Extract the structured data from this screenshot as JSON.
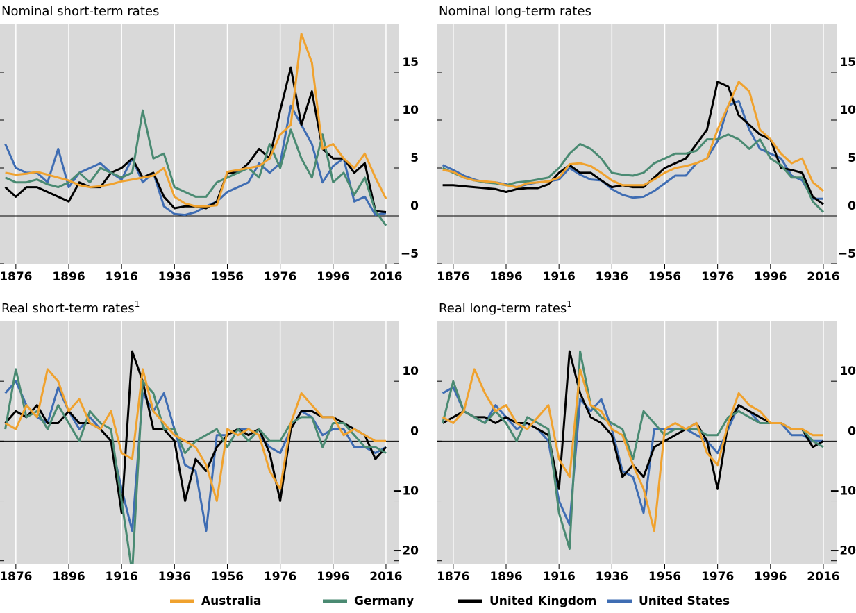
{
  "chart_data": [
    {
      "type": "line",
      "title": "Nominal short-term rates",
      "xlim": [
        1870,
        2021
      ],
      "ylim": [
        -5,
        20
      ],
      "xticks": [
        1876,
        1896,
        1916,
        1936,
        1956,
        1976,
        1996,
        2016
      ],
      "yticks": [
        {
          "value": -5,
          "label": "−5"
        },
        0,
        5,
        10,
        15
      ],
      "x": [
        1872,
        1876,
        1880,
        1884,
        1888,
        1892,
        1896,
        1900,
        1904,
        1908,
        1912,
        1916,
        1920,
        1924,
        1928,
        1932,
        1936,
        1940,
        1944,
        1948,
        1952,
        1956,
        1960,
        1964,
        1968,
        1972,
        1976,
        1980,
        1984,
        1988,
        1992,
        1996,
        2000,
        2004,
        2008,
        2012,
        2016
      ],
      "series": [
        {
          "name": "Australia",
          "color": "#f0a22e",
          "values": [
            4.5,
            4.3,
            4.4,
            4.6,
            4.3,
            4.0,
            3.7,
            3.2,
            3.0,
            3.1,
            3.3,
            3.6,
            3.8,
            4.0,
            4.2,
            5.0,
            2.0,
            1.3,
            1.0,
            1.0,
            1.1,
            4.6,
            4.8,
            5.0,
            5.2,
            6.0,
            8.5,
            9.5,
            19.0,
            16.0,
            7.0,
            7.5,
            6.0,
            5.0,
            6.5,
            4.0,
            1.8
          ]
        },
        {
          "name": "Germany",
          "color": "#4a8a72",
          "values": [
            4.0,
            3.5,
            3.5,
            3.8,
            3.3,
            3.0,
            3.5,
            4.5,
            3.5,
            5.0,
            4.5,
            4.0,
            4.5,
            11.0,
            6.0,
            6.5,
            3.0,
            2.5,
            2.0,
            2.0,
            3.5,
            4.0,
            4.5,
            5.0,
            4.0,
            7.5,
            5.0,
            9.0,
            6.0,
            4.0,
            8.5,
            3.5,
            4.5,
            2.2,
            4.0,
            0.5,
            -1.0
          ]
        },
        {
          "name": "United Kingdom",
          "color": "#000000",
          "values": [
            3.0,
            2.0,
            3.0,
            3.0,
            2.5,
            2.0,
            1.5,
            3.5,
            3.0,
            3.0,
            4.5,
            5.0,
            6.0,
            4.0,
            4.5,
            2.0,
            0.8,
            1.0,
            1.0,
            0.8,
            1.5,
            4.5,
            4.5,
            5.5,
            7.0,
            6.0,
            11.0,
            15.5,
            9.5,
            13.0,
            7.0,
            6.0,
            6.0,
            4.5,
            5.5,
            0.5,
            0.4
          ]
        },
        {
          "name": "United States",
          "color": "#3f6db3",
          "values": [
            7.5,
            5.0,
            4.5,
            4.5,
            3.5,
            7.0,
            3.0,
            4.5,
            5.0,
            5.5,
            4.5,
            3.8,
            6.0,
            3.5,
            4.5,
            1.0,
            0.2,
            0.1,
            0.4,
            1.0,
            1.5,
            2.5,
            3.0,
            3.5,
            5.5,
            4.5,
            5.5,
            11.5,
            9.5,
            7.5,
            3.5,
            5.2,
            6.0,
            1.5,
            2.0,
            0.1,
            0.3
          ]
        }
      ]
    },
    {
      "type": "line",
      "title": "Nominal long-term rates",
      "xlim": [
        1870,
        2021
      ],
      "ylim": [
        -5,
        20
      ],
      "xticks": [
        1876,
        1896,
        1916,
        1936,
        1956,
        1976,
        1996,
        2016
      ],
      "yticks": [
        {
          "value": -5,
          "label": "−5"
        },
        0,
        5,
        10,
        15
      ],
      "x": [
        1872,
        1876,
        1880,
        1884,
        1888,
        1892,
        1896,
        1900,
        1904,
        1908,
        1912,
        1916,
        1920,
        1924,
        1928,
        1932,
        1936,
        1940,
        1944,
        1948,
        1952,
        1956,
        1960,
        1964,
        1968,
        1972,
        1976,
        1980,
        1984,
        1988,
        1992,
        1996,
        2000,
        2004,
        2008,
        2012,
        2016
      ],
      "series": [
        {
          "name": "Australia",
          "color": "#f0a22e",
          "values": [
            4.8,
            4.6,
            4.0,
            3.7,
            3.6,
            3.5,
            3.2,
            3.0,
            3.4,
            3.5,
            3.6,
            4.0,
            5.4,
            5.5,
            5.2,
            4.5,
            3.7,
            3.2,
            3.2,
            3.2,
            3.8,
            4.5,
            5.0,
            5.2,
            5.5,
            6.0,
            9.0,
            11.5,
            14.0,
            13.0,
            9.0,
            8.0,
            6.5,
            5.5,
            6.0,
            3.5,
            2.6
          ]
        },
        {
          "name": "Germany",
          "color": "#4a8a72",
          "values": [
            5.0,
            4.5,
            4.0,
            3.7,
            3.5,
            3.4,
            3.2,
            3.5,
            3.6,
            3.8,
            4.0,
            5.0,
            6.5,
            7.5,
            7.0,
            6.0,
            4.5,
            4.3,
            4.2,
            4.5,
            5.5,
            6.0,
            6.5,
            6.5,
            6.8,
            8.0,
            8.0,
            8.5,
            8.0,
            7.0,
            8.0,
            6.0,
            5.3,
            4.0,
            4.0,
            1.5,
            0.4
          ]
        },
        {
          "name": "United Kingdom",
          "color": "#000000",
          "values": [
            3.2,
            3.2,
            3.1,
            3.0,
            2.9,
            2.8,
            2.5,
            2.8,
            2.9,
            2.9,
            3.3,
            4.5,
            5.3,
            4.5,
            4.5,
            3.7,
            3.0,
            3.2,
            3.0,
            3.0,
            4.0,
            5.0,
            5.5,
            6.0,
            7.5,
            9.0,
            14.0,
            13.5,
            10.5,
            9.5,
            8.5,
            8.0,
            5.0,
            4.8,
            4.5,
            2.0,
            1.2
          ]
        },
        {
          "name": "United States",
          "color": "#3f6db3",
          "values": [
            5.3,
            4.8,
            4.2,
            3.8,
            3.5,
            3.5,
            3.3,
            3.0,
            3.3,
            3.5,
            3.6,
            3.8,
            5.0,
            4.3,
            3.8,
            3.7,
            2.8,
            2.2,
            1.9,
            2.0,
            2.6,
            3.4,
            4.2,
            4.2,
            5.5,
            6.0,
            7.8,
            11.5,
            12.0,
            9.0,
            7.0,
            6.5,
            6.0,
            4.2,
            3.7,
            1.8,
            1.8
          ]
        }
      ]
    },
    {
      "type": "line",
      "title": "Real short-term rates",
      "title_note": "1",
      "xlim": [
        1870,
        2021
      ],
      "ylim": [
        -20.5,
        20
      ],
      "xticks": [
        1876,
        1896,
        1916,
        1936,
        1956,
        1976,
        1996,
        2016
      ],
      "yticks": [
        {
          "value": -20,
          "label": "−20"
        },
        {
          "value": -10,
          "label": "−10"
        },
        0,
        10
      ],
      "x": [
        1872,
        1876,
        1880,
        1884,
        1888,
        1892,
        1896,
        1900,
        1904,
        1908,
        1912,
        1916,
        1920,
        1924,
        1928,
        1932,
        1936,
        1940,
        1944,
        1948,
        1952,
        1956,
        1960,
        1964,
        1968,
        1972,
        1976,
        1980,
        1984,
        1988,
        1992,
        1996,
        2000,
        2004,
        2008,
        2012,
        2016
      ],
      "series": [
        {
          "name": "Australia",
          "color": "#f0a22e",
          "values": [
            3,
            2,
            6,
            4,
            12,
            10,
            5,
            7,
            3,
            2,
            5,
            -2,
            -3,
            12,
            5,
            3,
            1,
            0,
            -1,
            -4,
            -10,
            2,
            1,
            2,
            1,
            -5,
            -8,
            3,
            8,
            6,
            4,
            4,
            1,
            2,
            1,
            0,
            0
          ]
        },
        {
          "name": "Germany",
          "color": "#4a8a72",
          "values": [
            2,
            12,
            4,
            5,
            2,
            6,
            3,
            0,
            5,
            3,
            2,
            -10,
            -22,
            10,
            8,
            2,
            2,
            -2,
            0,
            1,
            2,
            -1,
            2,
            0,
            2,
            0,
            0,
            3,
            4,
            4,
            -1,
            3,
            3,
            1,
            -1,
            -1,
            -2
          ]
        },
        {
          "name": "United Kingdom",
          "color": "#000000",
          "values": [
            3,
            5,
            4,
            6,
            3,
            3,
            5,
            3,
            3,
            2,
            0,
            -12,
            15,
            10,
            2,
            2,
            0,
            -10,
            -3,
            -5,
            -1,
            1,
            2,
            1,
            2,
            -2,
            -10,
            2,
            5,
            5,
            4,
            4,
            3,
            2,
            1,
            -3,
            -1
          ]
        },
        {
          "name": "United States",
          "color": "#3f6db3",
          "values": [
            8,
            10,
            6,
            4,
            3,
            9,
            5,
            2,
            4,
            2,
            0,
            -8,
            -15,
            8,
            5,
            8,
            2,
            -4,
            -5,
            -15,
            1,
            1,
            2,
            2,
            1,
            -1,
            -2,
            2,
            5,
            4,
            1,
            2,
            2,
            -1,
            -1,
            -2,
            -1
          ]
        }
      ]
    },
    {
      "type": "line",
      "title": "Real long-term rates",
      "title_note": "1",
      "xlim": [
        1870,
        2021
      ],
      "ylim": [
        -20.5,
        20
      ],
      "xticks": [
        1876,
        1896,
        1916,
        1936,
        1956,
        1976,
        1996,
        2016
      ],
      "yticks": [
        {
          "value": -20,
          "label": "−20"
        },
        {
          "value": -10,
          "label": "−10"
        },
        0,
        10
      ],
      "x": [
        1872,
        1876,
        1880,
        1884,
        1888,
        1892,
        1896,
        1900,
        1904,
        1908,
        1912,
        1916,
        1920,
        1924,
        1928,
        1932,
        1936,
        1940,
        1944,
        1948,
        1952,
        1956,
        1960,
        1964,
        1968,
        1972,
        1976,
        1980,
        1984,
        1988,
        1992,
        1996,
        2000,
        2004,
        2008,
        2012,
        2016
      ],
      "series": [
        {
          "name": "Australia",
          "color": "#f0a22e",
          "values": [
            4,
            3,
            5,
            12,
            8,
            5,
            6,
            3,
            2,
            4,
            6,
            -3,
            -6,
            12,
            6,
            5,
            2,
            1,
            -4,
            -8,
            -15,
            2,
            3,
            2,
            3,
            -2,
            -4,
            3,
            8,
            6,
            5,
            3,
            3,
            2,
            2,
            1,
            1
          ]
        },
        {
          "name": "Germany",
          "color": "#4a8a72",
          "values": [
            3,
            10,
            5,
            4,
            3,
            5,
            3,
            0,
            4,
            3,
            2,
            -12,
            -18,
            15,
            6,
            4,
            3,
            2,
            -3,
            5,
            3,
            1,
            2,
            2,
            2,
            1,
            1,
            4,
            5,
            4,
            3,
            3,
            3,
            2,
            2,
            0,
            -1
          ]
        },
        {
          "name": "United Kingdom",
          "color": "#000000",
          "values": [
            3,
            4,
            5,
            4,
            4,
            3,
            4,
            3,
            3,
            2,
            1,
            -8,
            15,
            8,
            4,
            3,
            1,
            -6,
            -4,
            -6,
            -1,
            0,
            1,
            2,
            3,
            0,
            -8,
            3,
            6,
            5,
            4,
            3,
            3,
            2,
            2,
            -1,
            0
          ]
        },
        {
          "name": "United States",
          "color": "#3f6db3",
          "values": [
            8,
            9,
            5,
            4,
            3,
            6,
            4,
            2,
            3,
            2,
            0,
            -10,
            -14,
            7,
            5,
            7,
            2,
            -5,
            -6,
            -12,
            2,
            2,
            2,
            2,
            1,
            0,
            -2,
            2,
            6,
            5,
            3,
            3,
            3,
            1,
            1,
            0,
            0
          ]
        }
      ]
    }
  ]
}
